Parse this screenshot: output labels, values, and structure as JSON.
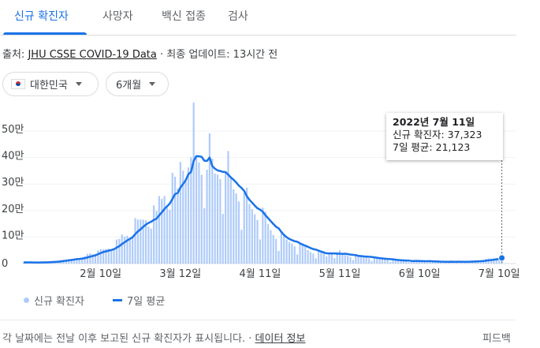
{
  "tabs": [
    "신규 확진자",
    "사망자",
    "백신 접종",
    "검사"
  ],
  "source": {
    "prefix": "출처:",
    "link": "JHU CSSE COVID-19 Data",
    "updated": "· 최종 업데이트: 13시간 전"
  },
  "filters": [
    "대한민국",
    "6개월"
  ],
  "tooltip": {
    "title": "2022년 7월 11일",
    "lines": [
      "신규 확진자: 37,323",
      "7일 평균: 21,123"
    ]
  },
  "footer": {
    "note": "각 날짜에는 전날 이후 보고된 신규 확진자가 표시됩니다. ·",
    "link": "데이터 정보",
    "feedback": "피드백"
  },
  "chart_data": {
    "type": "bar",
    "categories": [
      null,
      null,
      null,
      null,
      null,
      null,
      null,
      null,
      null,
      null,
      null,
      null,
      null,
      null,
      null,
      null,
      null,
      null,
      null,
      null,
      null,
      null,
      null,
      null,
      null,
      null,
      null,
      null,
      null,
      "2월 10일",
      null,
      null,
      null,
      null,
      null,
      null,
      null,
      null,
      null,
      null,
      null,
      null,
      null,
      null,
      null,
      null,
      null,
      null,
      null,
      null,
      null,
      null,
      null,
      null,
      null,
      null,
      null,
      null,
      null,
      "3월 12일",
      null,
      null,
      null,
      null,
      null,
      null,
      null,
      null,
      null,
      null,
      null,
      null,
      null,
      null,
      null,
      null,
      null,
      null,
      null,
      null,
      null,
      null,
      null,
      null,
      null,
      null,
      null,
      null,
      null,
      "4월 11일",
      null,
      null,
      null,
      null,
      null,
      null,
      null,
      null,
      null,
      null,
      null,
      null,
      null,
      null,
      null,
      null,
      null,
      null,
      null,
      null,
      null,
      null,
      null,
      null,
      null,
      null,
      null,
      null,
      null,
      "5월 11일",
      null,
      null,
      null,
      null,
      null,
      null,
      null,
      null,
      null,
      null,
      null,
      null,
      null,
      null,
      null,
      null,
      null,
      null,
      null,
      null,
      null,
      null,
      null,
      null,
      null,
      null,
      null,
      null,
      null,
      "6월 10일",
      null,
      null,
      null,
      null,
      null,
      null,
      null,
      null,
      null,
      null,
      null,
      null,
      null,
      null,
      null,
      null,
      null,
      null,
      null,
      null,
      null,
      null,
      null,
      null,
      null,
      null,
      null,
      null,
      null,
      "7월 10일",
      null
    ],
    "series": [
      {
        "name": "신규 확진자",
        "type": "bar",
        "color": "#aecbfa",
        "values": [
          4385,
          4167,
          4542,
          4423,
          3857,
          3094,
          4070,
          5804,
          6603,
          6767,
          7009,
          7630,
          7513,
          8571,
          13012,
          14518,
          16096,
          17542,
          17528,
          18342,
          20270,
          18343,
          22907,
          27443,
          36362,
          38691,
          35286,
          36719,
          49567,
          54122,
          53926,
          54941,
          56431,
          53126,
          57177,
          90443,
          93135,
          109831,
          102211,
          104829,
          95362,
          99573,
          171452,
          165890,
          166209,
          165889,
          163566,
          139626,
          131703,
          219241,
          198803,
          254327,
          243628,
          254327,
          210716,
          202721,
          342446,
          327549,
          282987,
          383665,
          350190,
          309790,
          362338,
          400741,
          621328,
          407017,
          381454,
          334708,
          209169,
          353980,
          490881,
          395598,
          339514,
          335580,
          318130,
          187213,
          347554,
          424641,
          320743,
          280273,
          264171,
          234301,
          127190,
          266135,
          286294,
          224820,
          205333,
          185566,
          164481,
          90928,
          210755,
          195419,
          148443,
          125846,
          107916,
          93001,
          47743,
          118504,
          111319,
          90867,
          81058,
          75449,
          64725,
          34370,
          76787,
          76603,
          63560,
          50568,
          43280,
          37771,
          20087,
          51131,
          49064,
          42296,
          26714,
          40064,
          38130,
          20601,
          43926,
          49933,
          35906,
          32451,
          29581,
          25434,
          13296,
          35117,
          32330,
          29635,
          25125,
          23956,
          19298,
          9975,
          23945,
          22248,
          18816,
          17187,
          16584,
          13358,
          6141,
          16584,
          13358,
          9898,
          12542,
          12046,
          9832,
          5022,
          6171,
          13358,
          12155,
          10172,
          9314,
          7382,
          3828,
          9435,
          8440,
          7994,
          7198,
          6068,
          5357,
          3423,
          9306,
          9315,
          7497,
          7224,
          6243,
          4426,
          3423,
          9896,
          9595,
          10463,
          10715,
          10059,
          9528,
          6253,
          18147,
          19371,
          18511,
          19323,
          20410,
          20342,
          37323
        ]
      },
      {
        "name": "7일 평균",
        "type": "line",
        "color": "#1a73e8",
        "values": [
          4300,
          4300,
          4300,
          4300,
          4250,
          4150,
          4077,
          4280,
          4628,
          4945,
          5315,
          5854,
          6485,
          7128,
          8158,
          9289,
          10621,
          12126,
          13540,
          15087,
          16758,
          17520,
          18718,
          20339,
          23028,
          26051,
          28472,
          30822,
          35282,
          39741,
          43525,
          46179,
          48713,
          51262,
          54184,
          60024,
          65597,
          73583,
          80336,
          87250,
          93284,
          99341,
          110913,
          121307,
          129361,
          138458,
          146849,
          153172,
          157762,
          164589,
          169291,
          181879,
          192985,
          205951,
          216106,
          226252,
          243853,
          262245,
          266339,
          286344,
          300039,
          314193,
          336995,
          345323,
          387291,
          405010,
          404694,
          402482,
          388108,
          386914,
          399791,
          367544,
          357901,
          351347,
          348979,
          345842,
          344924,
          335461,
          324768,
          316305,
          306104,
          294128,
          285553,
          273922,
          254158,
          240455,
          229749,
          218520,
          208546,
          203365,
          195454,
          182472,
          171561,
          160205,
          149113,
          138901,
          132732,
          119553,
          107539,
          99314,
          92915,
          88277,
          84238,
          82327,
          76368,
          71408,
          67507,
          63152,
          58556,
          54706,
          52665,
          49000,
          45066,
          42028,
          38620,
          38161,
          38212,
          38286,
          37256,
          37381,
          36468,
          37287,
          35790,
          33976,
          32932,
          31674,
          29159,
          28263,
          27217,
          26413,
          25537,
          25062,
          23466,
          22026,
          20480,
          19346,
          18293,
          17445,
          16897,
          15845,
          14575,
          13301,
          12638,
          11990,
          11486,
          11326,
          9838,
          9838,
          10161,
          9822,
          9432,
          9082,
          8911,
          9378,
          8675,
          8081,
          7656,
          7192,
          6903,
          6845,
          6827,
          6952,
          6881,
          6884,
          6909,
          6776,
          6776,
          6861,
          6901,
          7324,
          7823,
          8368,
          9097,
          9501,
          10680,
          12077,
          13226,
          14456,
          15935,
          17480,
          21123
        ]
      }
    ],
    "ylim": [
      0,
      600000
    ],
    "yticks": [
      0,
      {
        "value": 100000,
        "label": "10만"
      },
      {
        "value": 200000,
        "label": "20만"
      },
      {
        "value": 300000,
        "label": "30만"
      },
      {
        "value": 400000,
        "label": "40만"
      },
      {
        "value": 500000,
        "label": "50만"
      }
    ],
    "grid": true
  }
}
